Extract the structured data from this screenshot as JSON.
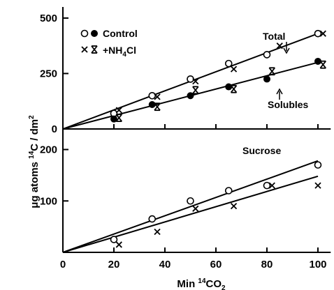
{
  "chart_data": [
    {
      "panel": "top",
      "type": "scatter",
      "ylabel": "μg atoms ¹⁴C / dm²",
      "xlim": [
        0,
        100
      ],
      "ylim": [
        0,
        550
      ],
      "yticks": [
        "0",
        "250",
        "500"
      ],
      "ytick_values": [
        0,
        250,
        500
      ],
      "legend": {
        "placement": "top-left",
        "entries": [
          {
            "symbols": "○ ●",
            "label": "Control"
          },
          {
            "symbols": "x ⧗",
            "label": "+NH₄Cl"
          }
        ]
      },
      "annotations": [
        "Total",
        "Solubles"
      ],
      "series": [
        {
          "name": "Total",
          "marker": "open-circle",
          "x": [
            20,
            35,
            50,
            65,
            80,
            100
          ],
          "y": [
            70,
            150,
            225,
            295,
            335,
            430
          ]
        },
        {
          "name": "Total",
          "marker": "x",
          "x": [
            22,
            37,
            52,
            67,
            85,
            102
          ],
          "y": [
            85,
            145,
            215,
            270,
            375,
            430
          ]
        },
        {
          "name": "Solubles",
          "marker": "filled-circle",
          "x": [
            20,
            35,
            50,
            65,
            80,
            100
          ],
          "y": [
            45,
            110,
            150,
            190,
            225,
            305
          ]
        },
        {
          "name": "Solubles",
          "marker": "hourglass",
          "x": [
            22,
            37,
            52,
            67,
            82,
            102
          ],
          "y": [
            50,
            100,
            175,
            180,
            260,
            290
          ]
        }
      ],
      "fit_lines": [
        {
          "name": "Total",
          "x": [
            0,
            100
          ],
          "y": [
            0,
            430
          ]
        },
        {
          "name": "Solubles",
          "x": [
            0,
            100
          ],
          "y": [
            0,
            300
          ]
        }
      ]
    },
    {
      "panel": "bottom",
      "type": "scatter",
      "xlabel": "Min ¹⁴CO₂",
      "xlim": [
        0,
        105
      ],
      "ylim": [
        0,
        240
      ],
      "xticks": [
        "0",
        "20",
        "40",
        "60",
        "80",
        "100"
      ],
      "xtick_values": [
        0,
        20,
        40,
        60,
        80,
        100
      ],
      "yticks": [
        "100",
        "200"
      ],
      "ytick_values": [
        100,
        200
      ],
      "annotations": [
        "Sucrose"
      ],
      "series": [
        {
          "name": "Sucrose",
          "marker": "open-circle",
          "x": [
            20,
            35,
            50,
            65,
            80,
            100
          ],
          "y": [
            25,
            65,
            100,
            120,
            130,
            170
          ]
        },
        {
          "name": "Sucrose",
          "marker": "x",
          "x": [
            22,
            37,
            52,
            67,
            82,
            100
          ],
          "y": [
            15,
            40,
            85,
            90,
            130,
            130
          ]
        }
      ],
      "fit_lines": [
        {
          "name": "Control",
          "x": [
            0,
            100
          ],
          "y": [
            0,
            178
          ]
        },
        {
          "name": "+NH4Cl",
          "x": [
            0,
            100
          ],
          "y": [
            0,
            148
          ]
        }
      ]
    }
  ]
}
